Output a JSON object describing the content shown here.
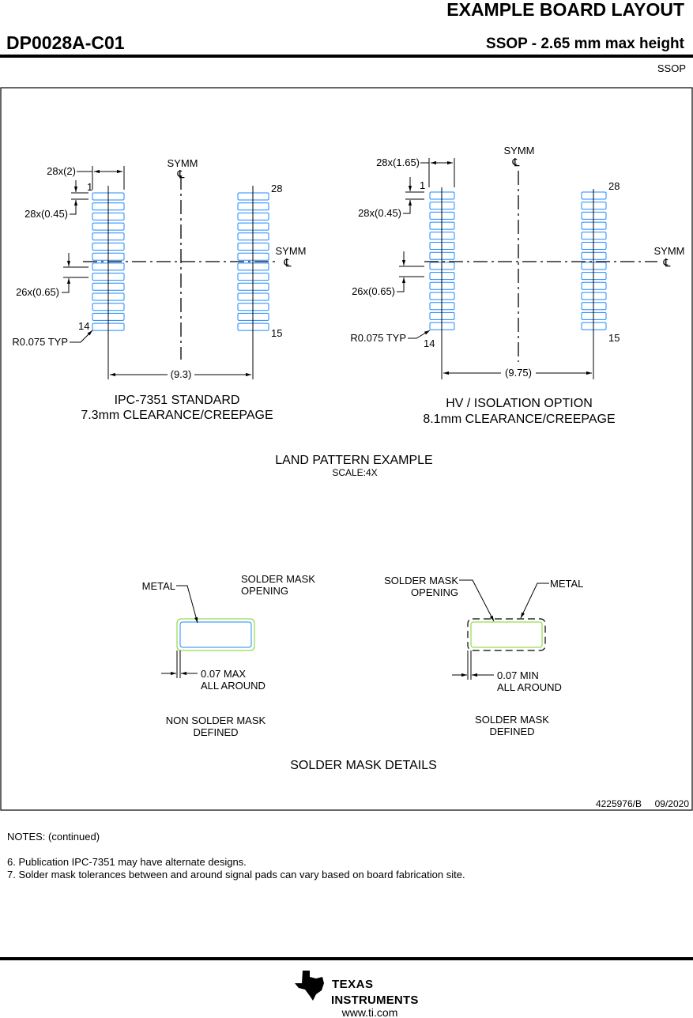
{
  "header": {
    "title": "EXAMPLE BOARD LAYOUT",
    "part_number": "DP0028A-C01",
    "package_desc": "SSOP - 2.65 mm max height",
    "package": "SSOP"
  },
  "colors": {
    "pad": "#1e88ff",
    "mask": "#7ed321",
    "line": "#000000"
  },
  "land_pattern": {
    "title": "LAND PATTERN EXAMPLE",
    "scale": "SCALE:4X",
    "symm": "SYMM",
    "centerline_symbol": "℄",
    "left": {
      "pad_width": "28x(2)",
      "pad_height": "28x(0.45)",
      "pitch": "26x(0.65)",
      "radius": "R0.075 TYP",
      "span": "(9.3)",
      "pin_1": "1",
      "pin_14": "14",
      "pin_15": "15",
      "pin_28": "28",
      "caption_1": "IPC-7351 STANDARD",
      "caption_2": "7.3mm CLEARANCE/CREEPAGE"
    },
    "right": {
      "pad_width": "28x(1.65)",
      "pad_height": "28x(0.45)",
      "pitch": "26x(0.65)",
      "radius": "R0.075 TYP",
      "span": "(9.75)",
      "pin_1": "1",
      "pin_14": "14",
      "pin_15": "15",
      "pin_28": "28",
      "caption_1": "HV / ISOLATION OPTION",
      "caption_2": "8.1mm CLEARANCE/CREEPAGE"
    }
  },
  "solder_mask": {
    "title": "SOLDER MASK DETAILS",
    "nsmd": {
      "metal": "METAL",
      "opening_1": "SOLDER MASK",
      "opening_2": "OPENING",
      "dim_1": "0.07 MAX",
      "dim_2": "ALL AROUND",
      "caption_1": "NON SOLDER MASK",
      "caption_2": "DEFINED"
    },
    "smd": {
      "metal": "METAL",
      "opening_1": "SOLDER MASK",
      "opening_2": "OPENING",
      "dim_1": "0.07 MIN",
      "dim_2": "ALL AROUND",
      "caption_1": "SOLDER MASK",
      "caption_2": "DEFINED"
    }
  },
  "doc_id": "4225976/B",
  "doc_date": "09/2020",
  "notes": {
    "heading": "NOTES: (continued)",
    "items": [
      "6. Publication IPC-7351 may have alternate designs.",
      "7. Solder mask tolerances between and around signal pads can vary based on board fabrication site."
    ]
  },
  "footer": {
    "logo_text": "TEXAS INSTRUMENTS",
    "url": "www.ti.com"
  }
}
